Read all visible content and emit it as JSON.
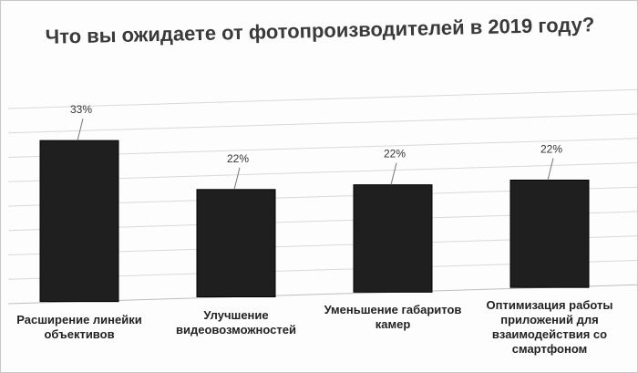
{
  "chart_data": {
    "type": "bar",
    "title": "Что вы ожидаете от фотопроизводителей в 2019 году?",
    "categories": [
      "Расширение линейки объективов",
      "Улучшение видеовозможностей",
      "Уменьшение габаритов камер",
      "Оптимизация работы приложений для взаимодействия со смартфоном"
    ],
    "values": [
      33,
      22,
      22,
      22
    ],
    "data_labels": [
      "33%",
      "22%",
      "22%",
      "22%"
    ],
    "ylim": [
      0,
      40
    ],
    "grid": true,
    "legend": "none",
    "bar_color": "#1f1f1f"
  }
}
